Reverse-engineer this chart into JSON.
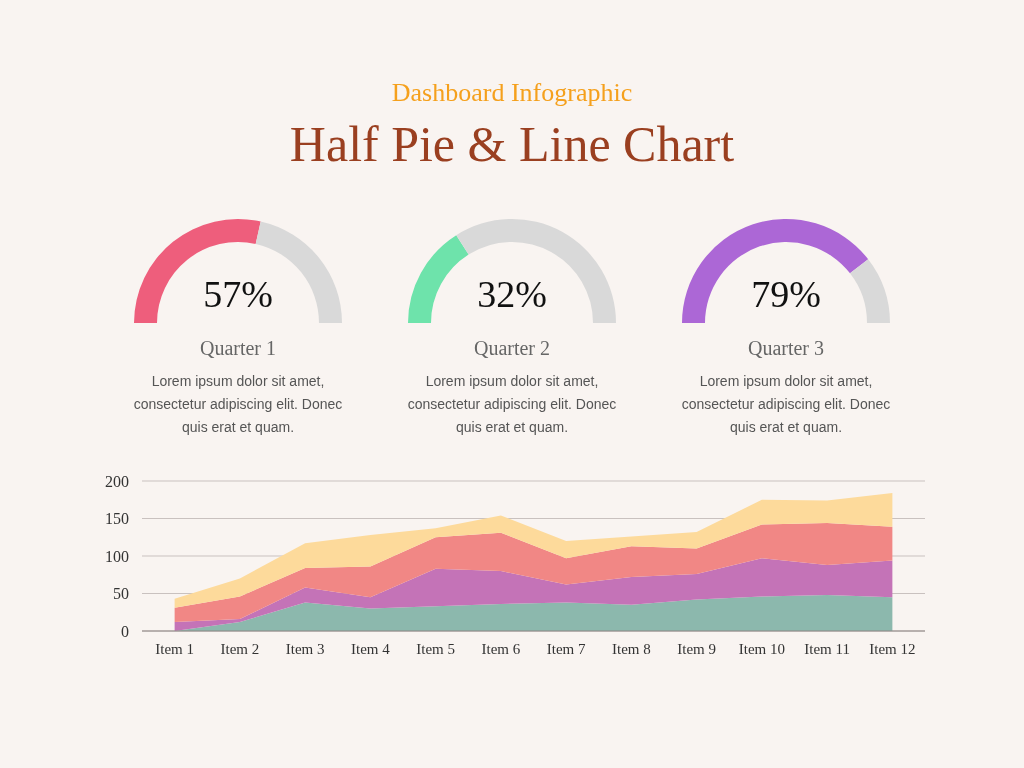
{
  "chart_data": [
    {
      "type": "other",
      "title": "Half Pie & Line Chart",
      "subtitle": "Dashboard Infographic"
    },
    {
      "type": "donut",
      "title": "Quarter 1",
      "categories": [
        null,
        null
      ],
      "values": [
        57,
        43
      ],
      "colors": [
        "#ee5e7c",
        "#d9d9d9"
      ],
      "annotations": [
        "57%",
        "Lorem ipsum dolor sit amet, consectetur adipiscing elit. Donec quis erat et quam."
      ]
    },
    {
      "type": "donut",
      "title": "Quarter 2",
      "categories": [
        null,
        null
      ],
      "values": [
        32,
        68
      ],
      "colors": [
        "#6ee3ab",
        "#d9d9d9"
      ],
      "annotations": [
        "32%",
        "Lorem ipsum dolor sit amet, consectetur adipiscing elit. Donec quis erat et quam."
      ]
    },
    {
      "type": "donut",
      "title": "Quarter 3",
      "categories": [
        null,
        null
      ],
      "values": [
        79,
        21
      ],
      "colors": [
        "#ac67d6",
        "#d9d9d9"
      ],
      "annotations": [
        "79%",
        "Lorem ipsum dolor sit amet, consectetur adipiscing elit. Donec quis erat et quam."
      ]
    },
    {
      "type": "area",
      "stacked": true,
      "categories": [
        "Item 1",
        "Item 2",
        "Item 3",
        "Item 4",
        "Item 5",
        "Item 6",
        "Item 7",
        "Item 8",
        "Item 9",
        "Item 10",
        "Item 11",
        "Item 12"
      ],
      "series": [
        {
          "color": "#8cb8ad",
          "values": [
            0,
            12,
            38,
            30,
            33,
            36,
            38,
            35,
            42,
            46,
            48,
            45
          ]
        },
        {
          "color": "#c473b7",
          "values": [
            12,
            4,
            20,
            15,
            50,
            44,
            24,
            37,
            34,
            51,
            40,
            49
          ]
        },
        {
          "color": "#f18785",
          "values": [
            19,
            30,
            26,
            41,
            42,
            51,
            35,
            41,
            34,
            45,
            56,
            45
          ]
        },
        {
          "color": "#fdda9b",
          "values": [
            12,
            24,
            33,
            42,
            12,
            23,
            23,
            13,
            22,
            33,
            30,
            45
          ]
        }
      ],
      "ylim": [
        0,
        200
      ],
      "yticks": [
        0,
        50,
        100,
        150,
        200
      ],
      "grid": "y"
    }
  ]
}
